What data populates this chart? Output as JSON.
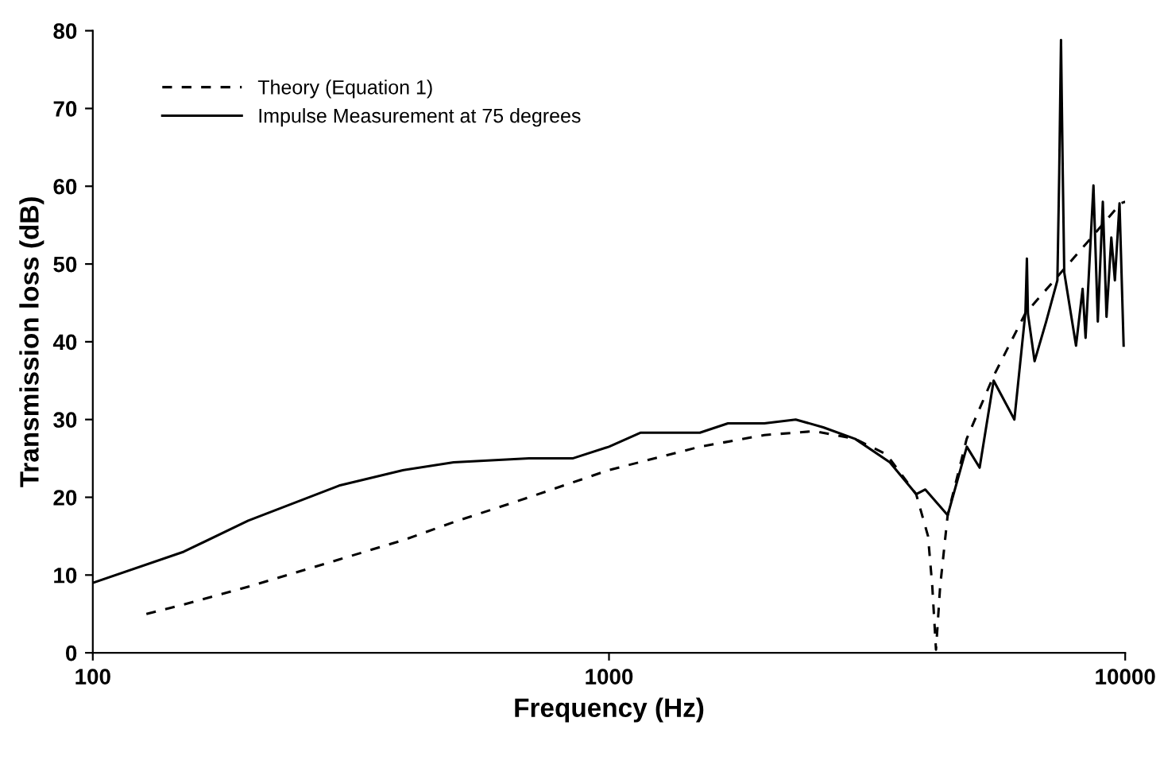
{
  "chart_data": {
    "type": "line",
    "xlabel": "Frequency (Hz)",
    "ylabel": "Transmission loss (dB)",
    "log": "x",
    "xlim": [
      100,
      10000
    ],
    "xticks": [
      100,
      1000,
      10000
    ],
    "ylim": [
      0,
      80
    ],
    "yticks": [
      0,
      10,
      20,
      30,
      40,
      50,
      60,
      70,
      80
    ],
    "grid": false,
    "legend": "top left",
    "marker": "none",
    "series": [
      {
        "name": "Theory (Equation 1)",
        "color": "#000000",
        "line_style": "dashed",
        "x": [
          127,
          150,
          200,
          300,
          400,
          500,
          700,
          1000,
          1500,
          2000,
          2500,
          3000,
          3450,
          3936,
          4150,
          4230,
          4300,
          4380,
          4530,
          4930,
          5560,
          6400,
          7510,
          8500,
          9800,
          10000
        ],
        "values": [
          5,
          6.2,
          8.5,
          12,
          14.5,
          16.8,
          20,
          23.5,
          26.5,
          28,
          28.5,
          27.5,
          25.5,
          20.4,
          15,
          8.5,
          0.4,
          8.5,
          17.7,
          27.5,
          35.6,
          43.6,
          48.9,
          53,
          57.8,
          58
        ]
      },
      {
        "name": "Impulse Measurement at 75 degrees",
        "color": "#000000",
        "line_style": "solid",
        "x": [
          100,
          150,
          200,
          300,
          400,
          500,
          700,
          850,
          1000,
          1150,
          1500,
          1700,
          2000,
          2300,
          2600,
          3000,
          3500,
          3936,
          4100,
          4530,
          4934,
          5224,
          5561,
          6100,
          6408,
          6450,
          6480,
          6675,
          7030,
          7390,
          7450,
          7510,
          7570,
          7620,
          8030,
          8270,
          8380,
          8680,
          8850,
          9050,
          9200,
          9400,
          9550,
          9750,
          9930
        ],
        "values": [
          9,
          13,
          17,
          21.5,
          23.5,
          24.5,
          25,
          25,
          26.5,
          28.3,
          28.3,
          29.5,
          29.5,
          30,
          29,
          27.5,
          24.5,
          20.4,
          21,
          17.7,
          26.5,
          23.8,
          35,
          30,
          43.8,
          50.7,
          43.6,
          37.5,
          42.6,
          47.9,
          61.5,
          78.8,
          61.5,
          48.9,
          39.5,
          46.8,
          40.5,
          60.1,
          42.6,
          58,
          43.2,
          53.4,
          47.9,
          57.8,
          39.5
        ]
      }
    ]
  }
}
